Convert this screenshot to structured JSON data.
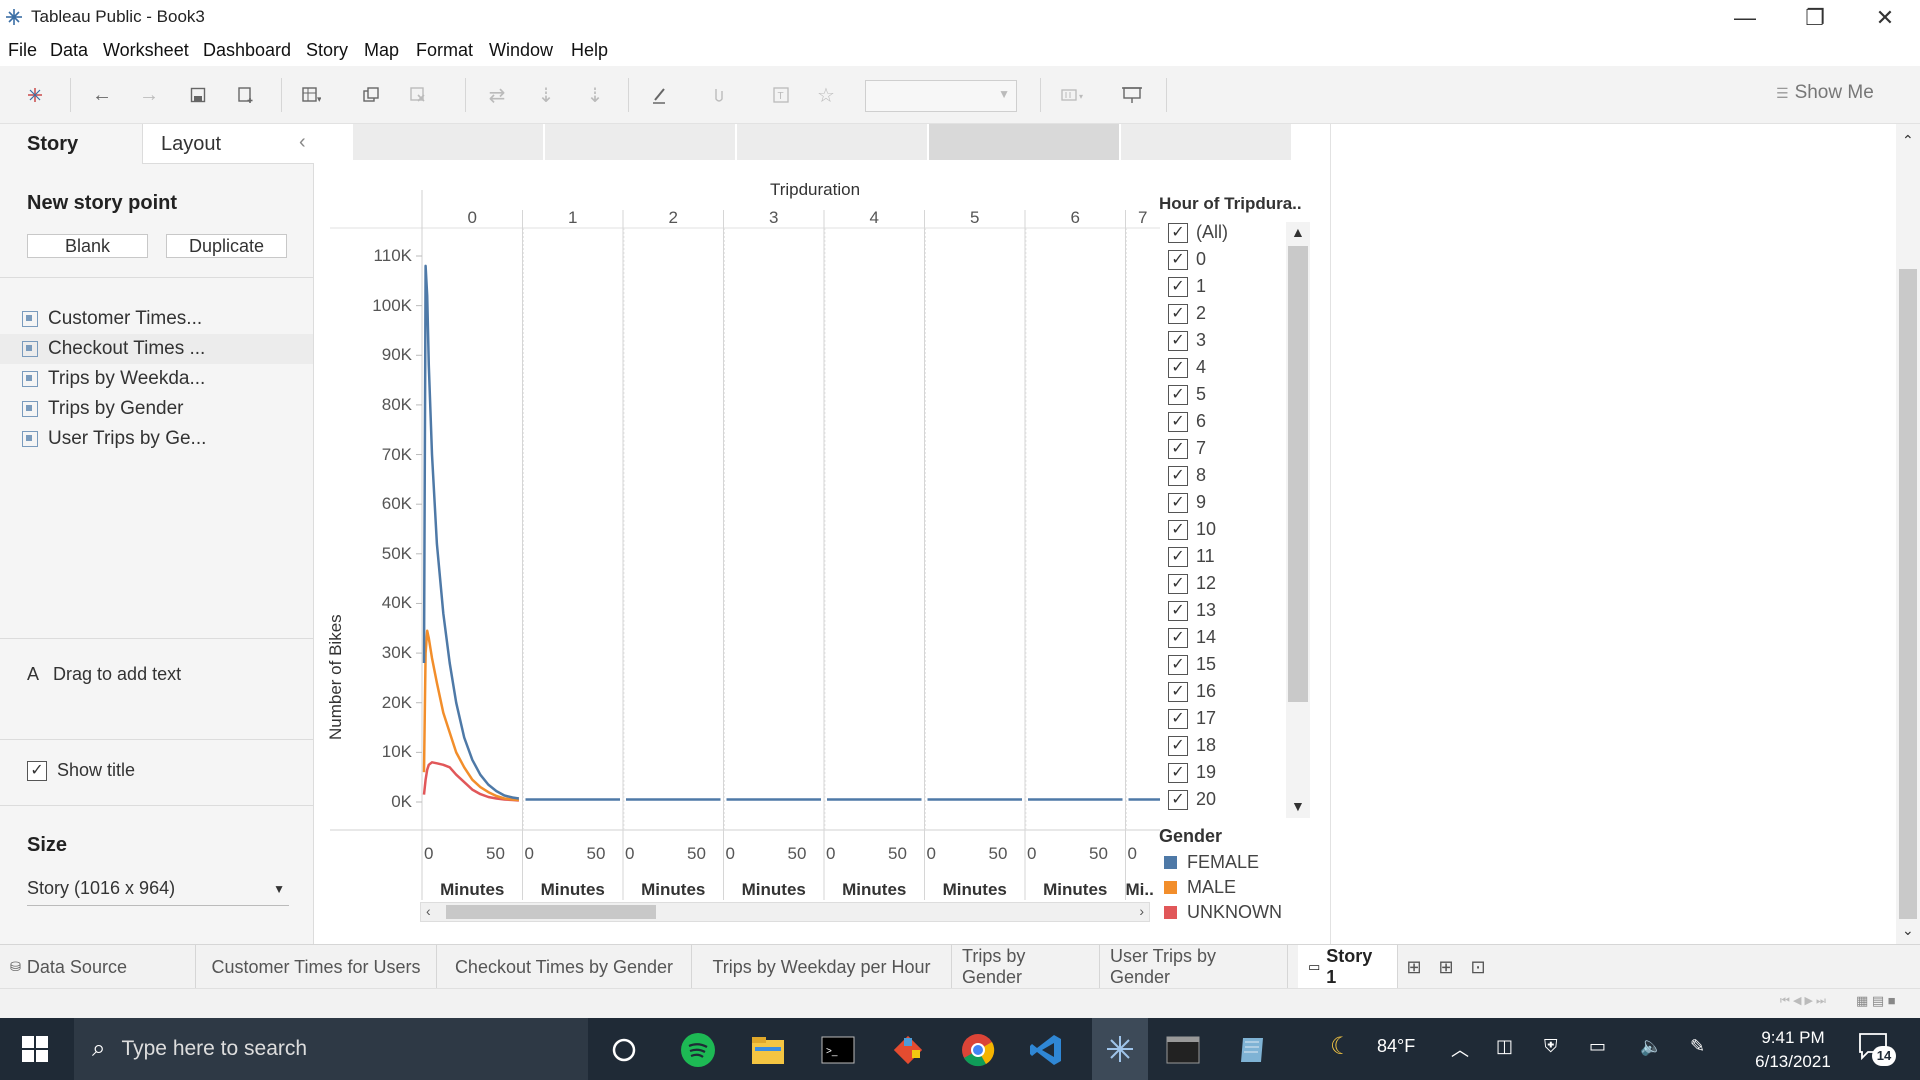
{
  "window": {
    "title": "Tableau Public - Book3",
    "minimize_glyph": "—",
    "restore_glyph": "❐",
    "close_glyph": "✕"
  },
  "menu": [
    "File",
    "Data",
    "Worksheet",
    "Dashboard",
    "Story",
    "Map",
    "Format",
    "Window",
    "Help"
  ],
  "toolbar": {
    "show_me": "Show Me",
    "icons": [
      "tableau-logo-icon",
      "back-icon",
      "forward-icon",
      "save-icon",
      "add-datasource-icon",
      "new-worksheet-icon",
      "duplicate-sheet-icon",
      "clear-sheet-icon",
      "swap-icon",
      "sort-asc-icon",
      "sort-desc-icon",
      "highlight-icon",
      "group-icon",
      "labels-icon",
      "fix-axes-icon",
      "fit-combo",
      "show-cards-icon",
      "presentation-icon"
    ]
  },
  "left_panel": {
    "tab_story": "Story",
    "tab_layout": "Layout",
    "collapse_glyph": "‹",
    "new_story_point": "New story point",
    "blank_button": "Blank",
    "duplicate_button": "Duplicate",
    "sheets": [
      "Customer Times...",
      "Checkout Times ...",
      "Trips by Weekda...",
      "Trips by Gender",
      "User Trips by Ge..."
    ],
    "drag_text_icon": "A",
    "drag_text": "Drag to add text",
    "show_title": "Show title",
    "size_label": "Size",
    "size_value": "Story (1016 x 964)"
  },
  "chart_data": {
    "type": "line",
    "column_header": "Tripduration",
    "panels": [
      "0",
      "1",
      "2",
      "3",
      "4",
      "5",
      "6",
      "7"
    ],
    "panel_x_ticks": [
      "0",
      "50"
    ],
    "panel_x_label": "Minutes",
    "last_panel_x_label": "Mi..",
    "ylabel": "Number of Bikes",
    "ylim": [
      0,
      110000
    ],
    "y_ticks": [
      "110K",
      "100K",
      "90K",
      "80K",
      "70K",
      "60K",
      "50K",
      "40K",
      "30K",
      "20K",
      "10K",
      "0K"
    ],
    "x_panel_0_minutes": [
      0,
      1,
      2,
      3,
      5,
      8,
      12,
      16,
      20,
      25,
      30,
      35,
      40,
      45,
      50,
      55,
      59
    ],
    "series": [
      {
        "name": "FEMALE",
        "color": "#4e79a7",
        "values": [
          28000,
          108000,
          102000,
          88000,
          70000,
          52000,
          38000,
          28000,
          20000,
          13000,
          8500,
          5500,
          3500,
          2200,
          1300,
          900,
          700
        ]
      },
      {
        "name": "MALE",
        "color": "#f28e2b",
        "values": [
          6000,
          30000,
          34500,
          33000,
          29000,
          24000,
          18000,
          14000,
          10000,
          7000,
          4500,
          3000,
          2000,
          1200,
          700,
          500,
          400
        ]
      },
      {
        "name": "UNKNOWN",
        "color": "#e15759",
        "values": [
          1500,
          4500,
          6500,
          7500,
          8000,
          7800,
          7500,
          7000,
          5500,
          4000,
          2500,
          1600,
          1000,
          700,
          500,
          400,
          300
        ]
      }
    ],
    "flat_value_other_panels": 500
  },
  "filter": {
    "title": "Hour of Tripdura..",
    "items": [
      "(All)",
      "0",
      "1",
      "2",
      "3",
      "4",
      "5",
      "6",
      "7",
      "8",
      "9",
      "10",
      "11",
      "12",
      "13",
      "14",
      "15",
      "16",
      "17",
      "18",
      "19",
      "20"
    ]
  },
  "legend": {
    "title": "Gender",
    "items": [
      {
        "label": "FEMALE",
        "color": "#4e79a7"
      },
      {
        "label": "MALE",
        "color": "#f28e2b"
      },
      {
        "label": "UNKNOWN",
        "color": "#e15759"
      }
    ]
  },
  "sheet_tabs": [
    "Data Source",
    "Customer Times for Users",
    "Checkout Times by Gender",
    "Trips by Weekday per Hour",
    "Trips by Gender",
    "User Trips by Gender",
    "Story 1"
  ],
  "taskbar": {
    "search_placeholder": "Type here to search",
    "weather": "84°F",
    "time": "9:41 PM",
    "date": "6/13/2021",
    "notifications": "14"
  }
}
